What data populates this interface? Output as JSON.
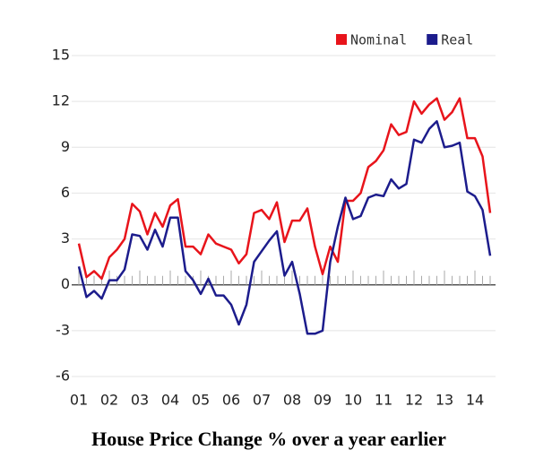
{
  "chart_data": {
    "type": "line",
    "title": "House Price Change % over a year earlier",
    "categories": [
      "01",
      null,
      null,
      null,
      "02",
      null,
      null,
      null,
      "03",
      null,
      null,
      null,
      "04",
      null,
      null,
      null,
      "05",
      null,
      null,
      null,
      "06",
      null,
      null,
      null,
      "07",
      null,
      null,
      null,
      "08",
      null,
      null,
      null,
      "09",
      null,
      null,
      null,
      "10",
      null,
      null,
      null,
      "11",
      null,
      null,
      null,
      "12",
      null,
      null,
      null,
      "13",
      null,
      null,
      null,
      "14",
      null,
      null
    ],
    "series": [
      {
        "name": "Nominal",
        "color": "#e8141b",
        "values": [
          2.7,
          0.5,
          0.9,
          0.4,
          1.8,
          2.3,
          3.0,
          5.3,
          4.8,
          3.3,
          4.7,
          3.8,
          5.2,
          5.6,
          2.5,
          2.5,
          2.0,
          3.3,
          2.7,
          2.5,
          2.3,
          1.4,
          2.0,
          4.7,
          4.9,
          4.3,
          5.4,
          2.8,
          4.2,
          4.2,
          5.0,
          2.5,
          0.7,
          2.5,
          1.5,
          5.5,
          5.5,
          6.0,
          7.7,
          8.1,
          8.8,
          10.5,
          9.8,
          10.0,
          12.0,
          11.2,
          11.8,
          12.2,
          10.8,
          11.3,
          12.2,
          9.6,
          9.6,
          8.4,
          4.7
        ]
      },
      {
        "name": "Real",
        "color": "#1c1c8c",
        "values": [
          1.2,
          -0.8,
          -0.4,
          -0.9,
          0.3,
          0.3,
          1.0,
          3.3,
          3.2,
          2.3,
          3.6,
          2.5,
          4.4,
          4.4,
          0.9,
          0.3,
          -0.6,
          0.4,
          -0.7,
          -0.7,
          -1.3,
          -2.6,
          -1.3,
          1.5,
          2.2,
          2.9,
          3.5,
          0.6,
          1.5,
          -0.6,
          -3.2,
          -3.2,
          -3.0,
          1.5,
          3.8,
          5.7,
          4.3,
          4.5,
          5.7,
          5.9,
          5.8,
          6.9,
          6.3,
          6.6,
          9.5,
          9.3,
          10.2,
          10.7,
          9.0,
          9.1,
          9.3,
          6.1,
          5.8,
          4.9,
          1.9
        ]
      }
    ],
    "ylim": [
      -6,
      15
    ],
    "yticks": [
      15,
      12,
      9,
      6,
      3,
      0,
      -3,
      -6
    ],
    "grid": true,
    "legend": "top-right"
  }
}
